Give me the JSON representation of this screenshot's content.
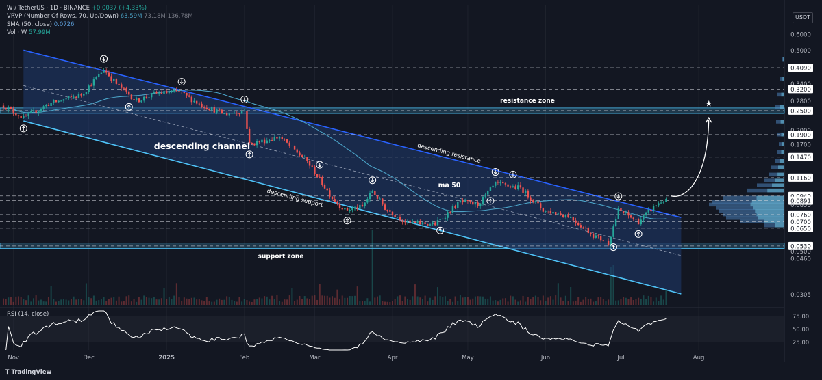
{
  "header": {
    "symbol": "W / TetherUS · 1D · BINANCE",
    "change": "+0.0037 (+4.33%)",
    "vrvp_label": "VRVP (Number Of Rows, 70, Up/Down)",
    "vrvp_v1": "63.59M",
    "vrvp_v2": "73.18M",
    "vrvp_v3": "136.78M",
    "sma_label": "SMA (50, close)",
    "sma_value": "0.0726",
    "vol_label": "Vol · W",
    "vol_value": "57.99M",
    "currency": "USDT"
  },
  "rsi": {
    "label": "RSI (14, close)"
  },
  "branding": {
    "logo": "TradingView"
  },
  "colors": {
    "background": "#131722",
    "up": "#26a69a",
    "down": "#ef5350",
    "channel_fill": "#1c2a4a",
    "resistance_line": "#2962ff",
    "support_line": "#4fc3f7",
    "sma": "#4ba3c7",
    "zone": "#4fc3f7"
  },
  "chart_data": {
    "type": "candlestick",
    "log_scale": true,
    "ylim": [
      0.027,
      0.66
    ],
    "y_ticks": [
      "0.6000",
      "0.5000",
      "0.4090",
      "0.3400",
      "0.3200",
      "0.2800",
      "0.2500",
      "0.2000",
      "0.1900",
      "0.1700",
      "0.1470",
      "0.1160",
      "0.0940",
      "0.0891",
      "0.0850",
      "0.0760",
      "0.0700",
      "0.0650",
      "0.0530",
      "0.0500",
      "0.0460",
      "0.0305"
    ],
    "highlighted_ticks": [
      "0.4090",
      "0.3200",
      "0.2500",
      "0.1900",
      "0.1470",
      "0.1160",
      "0.0940",
      "0.0891",
      "0.0760",
      "0.0700",
      "0.0650",
      "0.0530"
    ],
    "x_ticks": [
      "Nov",
      "Dec",
      "2025",
      "Feb",
      "Mar",
      "Apr",
      "May",
      "Jun",
      "Jul",
      "Aug"
    ],
    "x_range": [
      "2024-10-28",
      "2025-08-31"
    ],
    "price_anchors": [
      {
        "date": "2024-10-28",
        "close": 0.265
      },
      {
        "date": "2024-11-05",
        "close": 0.23
      },
      {
        "date": "2024-11-15",
        "close": 0.27
      },
      {
        "date": "2024-11-28",
        "close": 0.3
      },
      {
        "date": "2024-12-07",
        "close": 0.4
      },
      {
        "date": "2024-12-12",
        "close": 0.34
      },
      {
        "date": "2024-12-20",
        "close": 0.28
      },
      {
        "date": "2024-12-28",
        "close": 0.305
      },
      {
        "date": "2025-01-06",
        "close": 0.31
      },
      {
        "date": "2025-01-14",
        "close": 0.27
      },
      {
        "date": "2025-01-24",
        "close": 0.24
      },
      {
        "date": "2025-02-01",
        "close": 0.25
      },
      {
        "date": "2025-02-03",
        "close": 0.17
      },
      {
        "date": "2025-02-15",
        "close": 0.185
      },
      {
        "date": "2025-02-26",
        "close": 0.14
      },
      {
        "date": "2025-03-08",
        "close": 0.092
      },
      {
        "date": "2025-03-13",
        "close": 0.08
      },
      {
        "date": "2025-03-20",
        "close": 0.083
      },
      {
        "date": "2025-03-24",
        "close": 0.1
      },
      {
        "date": "2025-03-29",
        "close": 0.082
      },
      {
        "date": "2025-04-07",
        "close": 0.069
      },
      {
        "date": "2025-04-18",
        "close": 0.068
      },
      {
        "date": "2025-04-28",
        "close": 0.088
      },
      {
        "date": "2025-05-05",
        "close": 0.085
      },
      {
        "date": "2025-05-12",
        "close": 0.108
      },
      {
        "date": "2025-05-22",
        "close": 0.103
      },
      {
        "date": "2025-05-31",
        "close": 0.08
      },
      {
        "date": "2025-06-10",
        "close": 0.075
      },
      {
        "date": "2025-06-20",
        "close": 0.06
      },
      {
        "date": "2025-06-26",
        "close": 0.055
      },
      {
        "date": "2025-06-30",
        "close": 0.08
      },
      {
        "date": "2025-07-08",
        "close": 0.07
      },
      {
        "date": "2025-07-15",
        "close": 0.085
      },
      {
        "date": "2025-07-19",
        "close": 0.091
      }
    ],
    "channel": {
      "resistance": [
        {
          "date": "2024-11-05",
          "price": 0.5
        },
        {
          "date": "2025-07-25",
          "price": 0.0735
        }
      ],
      "support": [
        {
          "date": "2024-11-05",
          "price": 0.222
        },
        {
          "date": "2025-07-25",
          "price": 0.0306
        }
      ],
      "midline": [
        {
          "date": "2024-11-05",
          "price": 0.333
        },
        {
          "date": "2025-07-25",
          "price": 0.0475
        }
      ]
    },
    "zones": [
      {
        "name": "resistance zone",
        "from": 0.242,
        "to": 0.258
      },
      {
        "name": "support zone",
        "from": 0.0515,
        "to": 0.0548
      }
    ],
    "annotations": [
      {
        "text": "descending channel"
      },
      {
        "text": "descending resistance"
      },
      {
        "text": "descending support"
      },
      {
        "text": "ma 50"
      },
      {
        "text": "resistance zone"
      },
      {
        "text": "support zone"
      }
    ],
    "markers_up": [
      "2024-11-05",
      "2024-12-17",
      "2025-02-03",
      "2025-03-14",
      "2025-04-20",
      "2025-05-10",
      "2025-06-28",
      "2025-07-08"
    ],
    "markers_down": [
      "2024-12-07",
      "2025-01-07",
      "2025-02-01",
      "2025-03-03",
      "2025-03-24",
      "2025-05-12",
      "2025-05-19",
      "2025-06-30"
    ],
    "projection": {
      "from": {
        "date": "2025-07-21",
        "price": 0.094
      },
      "to": {
        "date": "2025-08-05",
        "price": 0.24
      },
      "target": 0.265
    },
    "rsi": {
      "levels": [
        75.0,
        50.0,
        25.0
      ],
      "ylim": [
        10,
        85
      ],
      "last": 70
    }
  }
}
